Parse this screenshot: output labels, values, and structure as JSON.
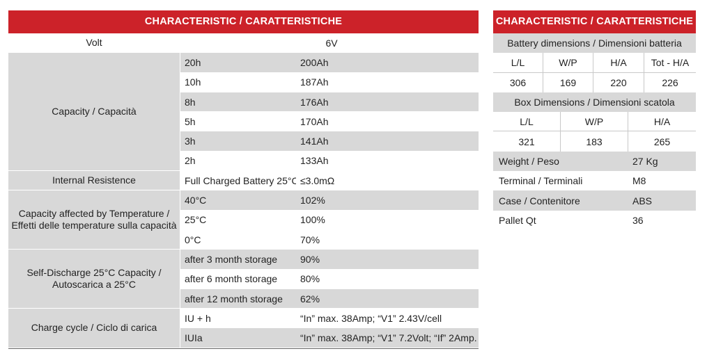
{
  "left_table": {
    "header": "CHARACTERISTIC / CARATTERISTICHE",
    "volt": {
      "label": "Volt",
      "value": "6V"
    },
    "capacity": {
      "label": "Capacity  / Capacità",
      "rows": [
        {
          "rate": "20h",
          "value": "200Ah"
        },
        {
          "rate": "10h",
          "value": "187Ah"
        },
        {
          "rate": "8h",
          "value": "176Ah"
        },
        {
          "rate": "5h",
          "value": "170Ah"
        },
        {
          "rate": "3h",
          "value": "141Ah"
        },
        {
          "rate": "2h",
          "value": "133Ah"
        }
      ]
    },
    "internal_resistance": {
      "label": "Internal Resistence",
      "condition": "Full Charged Battery 25°C",
      "value": "≤3.0mΩ"
    },
    "temperature": {
      "label_line1": "Capacity affected by Temperature /",
      "label_line2": "Effetti delle temperature sulla capacità",
      "rows": [
        {
          "temp": "40°C",
          "value": "102%"
        },
        {
          "temp": "25°C",
          "value": "100%"
        },
        {
          "temp": "0°C",
          "value": "70%"
        }
      ]
    },
    "self_discharge": {
      "label_line1": "Self-Discharge 25°C Capacity /",
      "label_line2": "Autoscarica a 25°C",
      "rows": [
        {
          "period": "after 3 month storage",
          "value": "90%"
        },
        {
          "period": "after 6 month storage",
          "value": "80%"
        },
        {
          "period": "after 12 month storage",
          "value": "62%"
        }
      ]
    },
    "charge_cycle": {
      "label": "Charge cycle / Ciclo di carica",
      "rows": [
        {
          "mode": "IU + h",
          "value": "“In” max. 38Amp; “V1” 2.43V/cell"
        },
        {
          "mode": "IUIa",
          "value": "“In” max. 38Amp; “V1” 7.2Volt; “If” 2Amp."
        }
      ]
    }
  },
  "right_table": {
    "header": "CHARACTERISTIC / CARATTERISTICHE",
    "battery_dimensions": {
      "title": "Battery dimensions / Dimensioni batteria",
      "columns": [
        "L/L",
        "W/P",
        "H/A",
        "Tot - H/A"
      ],
      "values": [
        "306",
        "169",
        "220",
        "226"
      ]
    },
    "box_dimensions": {
      "title": "Box Dimensions / Dimensioni scatola",
      "columns": [
        "L/L",
        "W/P",
        "H/A"
      ],
      "values": [
        "321",
        "183",
        "265"
      ]
    },
    "properties": [
      {
        "label": "Weight / Peso",
        "value": "27 Kg"
      },
      {
        "label": "Terminal / Terminali",
        "value": "M8"
      },
      {
        "label": "Case / Contenitore",
        "value": "ABS"
      },
      {
        "label": "Pallet Qt",
        "value": "36"
      }
    ]
  },
  "colors": {
    "header_red": "#cc2229",
    "row_gray": "#d8d8d8"
  }
}
